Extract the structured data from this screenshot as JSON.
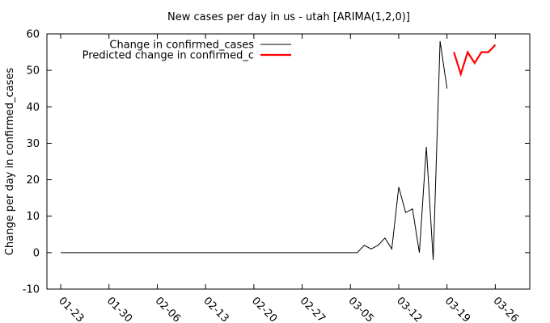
{
  "chart_data": {
    "type": "line",
    "title": "New cases per day in us - utah [ARIMA(1,2,0)]",
    "xlabel": "",
    "ylabel": "Change per day in confirmed_cases",
    "ylim": [
      -10,
      60
    ],
    "yticks": [
      -10,
      0,
      10,
      20,
      30,
      40,
      50,
      60
    ],
    "xlim": [
      "2020-01-21",
      "2020-03-31"
    ],
    "xticks": [
      {
        "date": "2020-01-23",
        "label": "01-23"
      },
      {
        "date": "2020-01-30",
        "label": "01-30"
      },
      {
        "date": "2020-02-06",
        "label": "02-06"
      },
      {
        "date": "2020-02-13",
        "label": "02-13"
      },
      {
        "date": "2020-02-20",
        "label": "02-20"
      },
      {
        "date": "2020-02-27",
        "label": "02-27"
      },
      {
        "date": "2020-03-05",
        "label": "03-05"
      },
      {
        "date": "2020-03-12",
        "label": "03-12"
      },
      {
        "date": "2020-03-19",
        "label": "03-19"
      },
      {
        "date": "2020-03-26",
        "label": "03-26"
      }
    ],
    "legend_position": "top-left",
    "grid": false,
    "series": [
      {
        "name": "Change in confirmed_cases",
        "color": "#000000",
        "points": [
          [
            "2020-01-23",
            0
          ],
          [
            "2020-03-06",
            0
          ],
          [
            "2020-03-07",
            2
          ],
          [
            "2020-03-08",
            1
          ],
          [
            "2020-03-09",
            2
          ],
          [
            "2020-03-10",
            4
          ],
          [
            "2020-03-11",
            1
          ],
          [
            "2020-03-12",
            18
          ],
          [
            "2020-03-13",
            11
          ],
          [
            "2020-03-14",
            12
          ],
          [
            "2020-03-15",
            0
          ],
          [
            "2020-03-16",
            29
          ],
          [
            "2020-03-17",
            -2
          ],
          [
            "2020-03-18",
            58
          ],
          [
            "2020-03-19",
            45
          ]
        ]
      },
      {
        "name": "Predicted change in confirmed_c",
        "color": "#ff0000",
        "points": [
          [
            "2020-03-20",
            55
          ],
          [
            "2020-03-21",
            49
          ],
          [
            "2020-03-22",
            55
          ],
          [
            "2020-03-23",
            52
          ],
          [
            "2020-03-24",
            55
          ],
          [
            "2020-03-25",
            55
          ],
          [
            "2020-03-26",
            57
          ]
        ]
      }
    ]
  }
}
